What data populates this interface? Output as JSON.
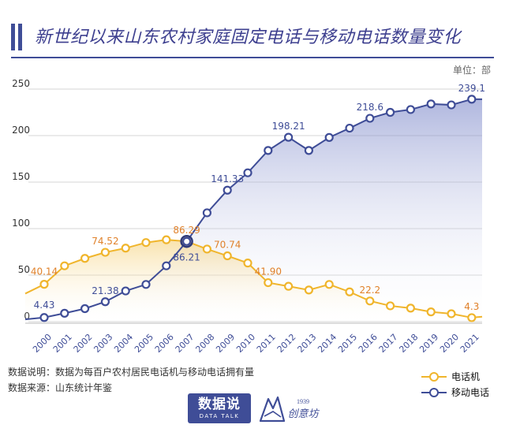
{
  "header": {
    "title": "新世纪以来山东农村家庭固定电话与移动电话数量变化",
    "unit": "单位：部"
  },
  "notes": {
    "line1": "数据说明：数据为每百户农村居民电话机与移动电话拥有量",
    "line2": "数据来源：山东统计年鉴"
  },
  "brand": {
    "logo1_main": "数据说",
    "logo1_sub": "DATA TALK",
    "logo2_year": "1939",
    "logo2_name": "创意坊"
  },
  "colors": {
    "phone": "#f0b52c",
    "mobile": "#3f4d97",
    "phone_label": "#e0812a",
    "mobile_label": "#3f4d97",
    "axis_tick": "#3f4d97"
  },
  "chart_data": {
    "type": "line",
    "title": "新世纪以来山东农村家庭固定电话与移动电话数量变化",
    "ylabel": "单位：部",
    "xlabel": "",
    "ylim": [
      0,
      250
    ],
    "yticks": [
      0,
      50,
      100,
      150,
      200,
      250
    ],
    "grid": true,
    "legend_position": "bottom-right",
    "categories": [
      "2000",
      "2001",
      "2002",
      "2003",
      "2004",
      "2005",
      "2006",
      "2007",
      "2008",
      "2009",
      "2010",
      "2011",
      "2012",
      "2013",
      "2014",
      "2015",
      "2016",
      "2017",
      "2018",
      "2019",
      "2020",
      "2021"
    ],
    "series": [
      {
        "name": "电话机",
        "values": [
          40.14,
          60,
          68,
          74.52,
          79,
          85,
          88,
          86.29,
          78,
          70.74,
          63,
          41.9,
          38,
          34,
          40,
          32,
          22.2,
          17,
          14.5,
          10.5,
          8.5,
          4.3
        ],
        "labels": {
          "0": "40.14",
          "3": "74.52",
          "7": "86.29",
          "9": "70.74",
          "11": "41.90",
          "16": "22.2",
          "21": "4.3"
        }
      },
      {
        "name": "移动电话",
        "values": [
          4.43,
          9,
          14,
          21.38,
          33,
          40,
          60,
          86.21,
          117,
          141.33,
          160,
          184,
          198.21,
          184,
          198,
          208,
          218.6,
          225,
          228,
          234,
          233,
          239.1
        ],
        "labels": {
          "0": "4.43",
          "3": "21.38",
          "7": "86.21",
          "9": "141.33",
          "12": "198.21",
          "16": "218.6",
          "21": "239.1"
        }
      }
    ]
  }
}
